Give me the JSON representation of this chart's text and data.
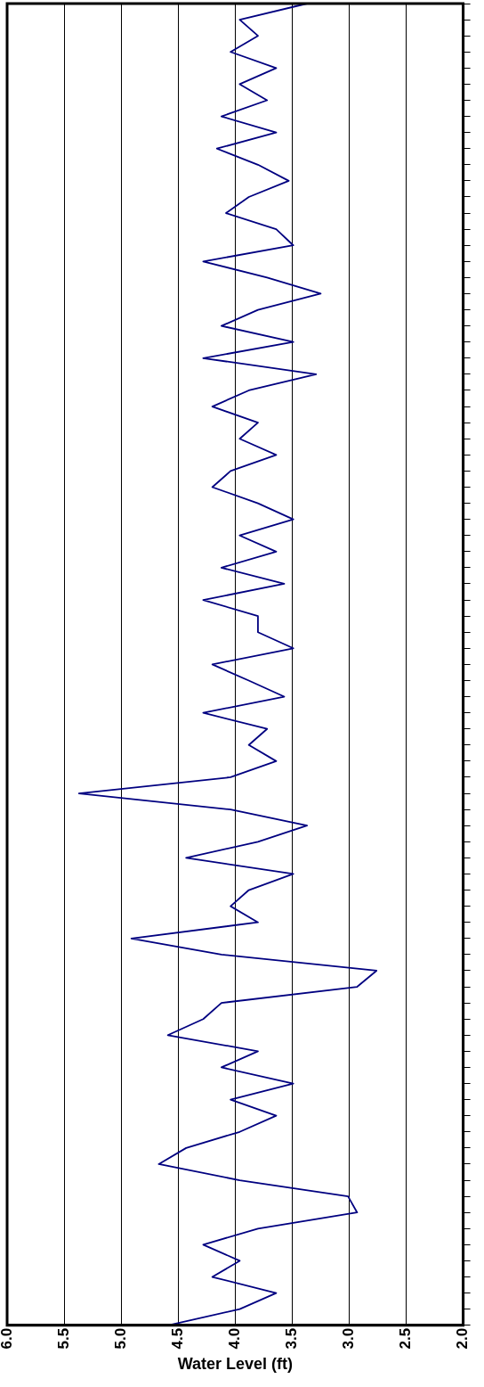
{
  "chart_data": {
    "type": "line",
    "orientation": "horizontal",
    "xlabel": "Water Level (ft)",
    "color": "#000080",
    "grid": "x",
    "tick_labels": "x",
    "legend": false,
    "marker": "none",
    "xlim": [
      6,
      2
    ],
    "xticks": [
      {
        "value": 6,
        "label": "6.0"
      },
      {
        "value": 5.5,
        "label": "5.5"
      },
      {
        "value": 5,
        "label": "5.0"
      },
      {
        "value": 4.5,
        "label": "4.5"
      },
      {
        "value": 4,
        "label": "4.0"
      },
      {
        "value": 3.5,
        "label": "3.5"
      },
      {
        "value": 3,
        "label": "3.0"
      },
      {
        "value": 2.5,
        "label": "2.5"
      },
      {
        "value": 2,
        "label": "2.0"
      }
    ],
    "categories": [
      null,
      null,
      null,
      null,
      null,
      null,
      null,
      null,
      null,
      null,
      null,
      null,
      null,
      null,
      null,
      null,
      null,
      null,
      null,
      null,
      null,
      null,
      null,
      null,
      null,
      null,
      null,
      null,
      null,
      null,
      null,
      null,
      null,
      null,
      null,
      null,
      null,
      null,
      null,
      null,
      null,
      null,
      null,
      null,
      null,
      null,
      null,
      null,
      null,
      null,
      null,
      null,
      null,
      null,
      null,
      null,
      null,
      null,
      null,
      null,
      null,
      null,
      null,
      null,
      null,
      null,
      null,
      null,
      null,
      null,
      null,
      null,
      null,
      null,
      null,
      null,
      null,
      null,
      null,
      null,
      null,
      null,
      null
    ],
    "values": [
      3.37,
      3.96,
      3.8,
      4.04,
      3.64,
      3.96,
      3.72,
      4.12,
      3.64,
      4.16,
      3.8,
      3.53,
      3.88,
      4.08,
      3.64,
      3.49,
      4.28,
      3.72,
      3.25,
      3.8,
      4.12,
      3.49,
      4.28,
      3.29,
      3.88,
      4.2,
      3.8,
      3.96,
      3.64,
      4.04,
      4.2,
      3.8,
      3.49,
      3.96,
      3.64,
      4.12,
      3.57,
      4.28,
      3.8,
      3.8,
      3.49,
      4.2,
      3.88,
      3.57,
      4.28,
      3.72,
      3.88,
      3.64,
      4.04,
      5.37,
      4.04,
      3.37,
      3.8,
      4.43,
      3.49,
      3.88,
      4.04,
      3.8,
      4.91,
      4.12,
      2.76,
      2.93,
      4.12,
      4.28,
      4.59,
      3.8,
      4.12,
      3.49,
      4.04,
      3.64,
      3.96,
      4.43,
      4.67,
      3.96,
      3.01,
      2.93,
      3.8,
      4.28,
      3.96,
      4.2,
      3.64,
      3.96,
      4.59
    ]
  }
}
